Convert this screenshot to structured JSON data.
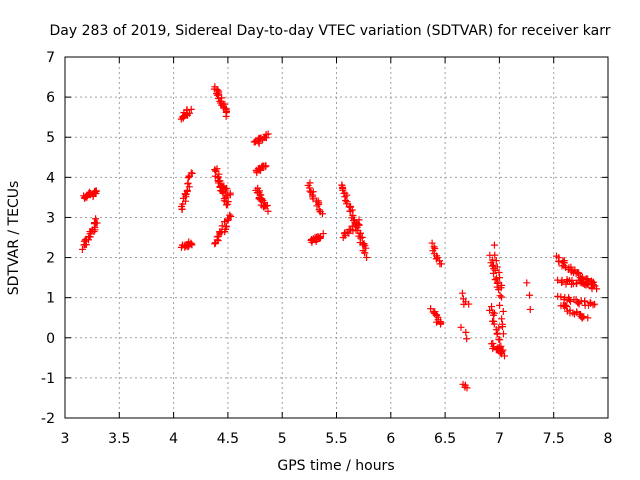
{
  "chart_data": {
    "type": "scatter",
    "title": "Day 283 of 2019, Sidereal Day-to-day VTEC variation (SDTVAR) for receiver karr",
    "xlabel": "GPS time / hours",
    "ylabel": "SDTVAR / TECUs",
    "xlim": [
      3,
      8
    ],
    "ylim": [
      -2,
      7
    ],
    "x_ticks": [
      3,
      3.5,
      4,
      4.5,
      5,
      5.5,
      6,
      6.5,
      7,
      7.5,
      8
    ],
    "x_tick_labels": [
      "3",
      "3.5",
      "4",
      "4.5",
      "5",
      "5.5",
      "6",
      "6.5",
      "7",
      "7.5",
      "8"
    ],
    "y_ticks": [
      -2,
      -1,
      0,
      1,
      2,
      3,
      4,
      5,
      6,
      7
    ],
    "y_tick_labels": [
      "-2",
      "-1",
      "0",
      "1",
      "2",
      "3",
      "4",
      "5",
      "6",
      "7"
    ],
    "grid": true,
    "marker": "plus",
    "marker_color": "#ff0000",
    "segments": [
      {
        "x0": 3.18,
        "x1": 3.3,
        "y0": 3.5,
        "y1": 3.65,
        "n": 22
      },
      {
        "x0": 3.17,
        "x1": 3.3,
        "y0": 2.25,
        "y1": 2.95,
        "n": 24
      },
      {
        "x0": 4.08,
        "x1": 4.15,
        "y0": 5.5,
        "y1": 5.65,
        "n": 14
      },
      {
        "x0": 4.08,
        "x1": 4.17,
        "y0": 3.15,
        "y1": 4.15,
        "n": 20
      },
      {
        "x0": 4.08,
        "x1": 4.16,
        "y0": 2.3,
        "y1": 2.35,
        "n": 14
      },
      {
        "x0": 4.38,
        "x1": 4.5,
        "y0": 6.25,
        "y1": 5.55,
        "n": 22
      },
      {
        "x0": 4.38,
        "x1": 4.5,
        "y0": 4.2,
        "y1": 3.3,
        "n": 26
      },
      {
        "x0": 4.4,
        "x1": 4.52,
        "y0": 3.95,
        "y1": 3.55,
        "n": 14
      },
      {
        "x0": 4.38,
        "x1": 4.52,
        "y0": 2.3,
        "y1": 3.05,
        "n": 22
      },
      {
        "x0": 4.76,
        "x1": 4.86,
        "y0": 4.85,
        "y1": 5.05,
        "n": 16
      },
      {
        "x0": 4.76,
        "x1": 4.86,
        "y0": 4.15,
        "y1": 4.3,
        "n": 14
      },
      {
        "x0": 4.76,
        "x1": 4.86,
        "y0": 3.7,
        "y1": 3.2,
        "n": 22
      },
      {
        "x0": 5.25,
        "x1": 5.36,
        "y0": 3.8,
        "y1": 3.1,
        "n": 18
      },
      {
        "x0": 5.26,
        "x1": 5.36,
        "y0": 2.4,
        "y1": 2.55,
        "n": 16
      },
      {
        "x0": 5.55,
        "x1": 5.78,
        "y0": 3.8,
        "y1": 2.05,
        "n": 44
      },
      {
        "x0": 5.56,
        "x1": 5.72,
        "y0": 2.5,
        "y1": 2.9,
        "n": 16
      },
      {
        "x0": 6.38,
        "x1": 6.46,
        "y0": 2.35,
        "y1": 1.8,
        "n": 12
      },
      {
        "x0": 6.38,
        "x1": 6.46,
        "y0": 0.7,
        "y1": 0.3,
        "n": 14
      },
      {
        "x0": 6.66,
        "x1": 6.7,
        "y0": 1.1,
        "y1": 0.8,
        "n": 5
      },
      {
        "x0": 6.66,
        "x1": 6.7,
        "y0": 0.2,
        "y1": -0.05,
        "n": 3
      },
      {
        "x0": 6.67,
        "x1": 6.7,
        "y0": -1.15,
        "y1": -1.25,
        "n": 4
      },
      {
        "x0": 6.92,
        "x1": 7.0,
        "y0": 2.0,
        "y1": 1.2,
        "n": 14
      },
      {
        "x0": 6.92,
        "x1": 7.04,
        "y0": 0.8,
        "y1": -0.5,
        "n": 20
      },
      {
        "x0": 6.92,
        "x1": 7.02,
        "y0": -0.15,
        "y1": -0.35,
        "n": 10
      },
      {
        "x0": 6.96,
        "x1": 7.05,
        "y0": 2.25,
        "y1": 0.1,
        "n": 16
      },
      {
        "x0": 7.27,
        "x1": 7.27,
        "y0": 1.35,
        "y1": 0.65,
        "n": 3
      },
      {
        "x0": 7.52,
        "x1": 7.88,
        "y0": 2.0,
        "y1": 1.25,
        "n": 40
      },
      {
        "x0": 7.55,
        "x1": 7.88,
        "y0": 1.0,
        "y1": 0.8,
        "n": 22
      },
      {
        "x0": 7.58,
        "x1": 7.8,
        "y0": 0.8,
        "y1": 0.45,
        "n": 20
      },
      {
        "x0": 7.55,
        "x1": 7.88,
        "y0": 1.4,
        "y1": 1.35,
        "n": 26
      }
    ]
  }
}
